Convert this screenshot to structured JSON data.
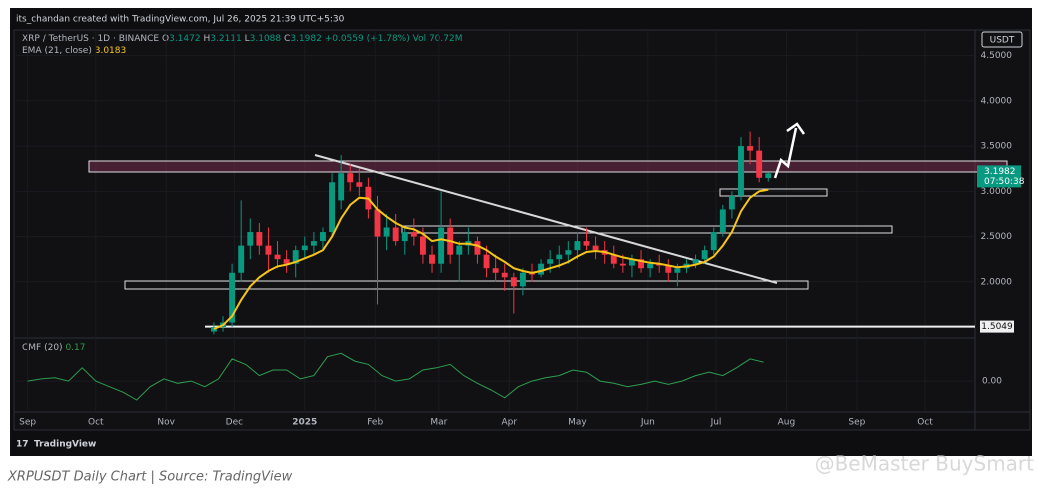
{
  "header": "its_chandan created with TradingView.com, Jul 26, 2025 21:39 UTC+5:30",
  "caption": "XRPUSDT Daily Chart | Source: TradingView",
  "watermark": "@BeMaster BuySmart",
  "logo": "TradingView",
  "chart_data": {
    "type": "candlestick",
    "symbol": "XRP / TetherUS · 1D · BINANCE",
    "ohlc_labels": [
      "O",
      "H",
      "L",
      "C"
    ],
    "change": "+0.0559 (+1.78%)",
    "volume": "Vol 70.72M",
    "currency": "USDT",
    "countdown": "07:50:38",
    "up_color": "#089981",
    "down_color": "#f23645",
    "grid": true,
    "xlim": [
      -6,
      417
    ],
    "xticks": [
      {
        "value": 0,
        "label": "Sep"
      },
      {
        "value": 30,
        "label": "Oct"
      },
      {
        "value": 61,
        "label": "Nov"
      },
      {
        "value": 91,
        "label": "Dec"
      },
      {
        "value": 122,
        "label": "2025"
      },
      {
        "value": 153,
        "label": "Feb"
      },
      {
        "value": 181,
        "label": "Mar"
      },
      {
        "value": 212,
        "label": "Apr"
      },
      {
        "value": 242,
        "label": "May"
      },
      {
        "value": 273,
        "label": "Jun"
      },
      {
        "value": 303,
        "label": "Jul"
      },
      {
        "value": 334,
        "label": "Aug"
      },
      {
        "value": 365,
        "label": "Sep"
      },
      {
        "value": 395,
        "label": "Oct"
      }
    ],
    "ylim": [
      1.39,
      4.75
    ],
    "yticks": [
      {
        "value": 2,
        "label": "2.0000"
      },
      {
        "value": 2.5,
        "label": "2.5000"
      },
      {
        "value": 3,
        "label": "3.0000"
      },
      {
        "value": 3.5,
        "label": "3.5000"
      },
      {
        "value": 4,
        "label": "4.0000"
      },
      {
        "value": 4.5,
        "label": "4.5000"
      }
    ],
    "price_line": 1.5049,
    "x": [
      82,
      86,
      90,
      94,
      98,
      102,
      106,
      110,
      114,
      118,
      122,
      126,
      130,
      134,
      138,
      142,
      146,
      150,
      154,
      158,
      162,
      166,
      170,
      174,
      178,
      182,
      186,
      190,
      194,
      198,
      202,
      206,
      210,
      214,
      218,
      222,
      226,
      230,
      234,
      238,
      242,
      246,
      250,
      254,
      258,
      262,
      266,
      270,
      274,
      278,
      282,
      286,
      290,
      294,
      298,
      302,
      306,
      310,
      314,
      318,
      322,
      326
    ],
    "open": [
      1.45,
      1.5,
      1.55,
      2.1,
      2.4,
      2.55,
      2.4,
      2.3,
      2.25,
      2.2,
      2.35,
      2.4,
      2.45,
      2.55,
      2.9,
      3.2,
      3.1,
      3.05,
      2.8,
      2.5,
      2.6,
      2.45,
      2.55,
      2.5,
      2.3,
      2.2,
      2.6,
      2.3,
      2.4,
      2.45,
      2.3,
      2.15,
      2.1,
      2.05,
      1.95,
      2.1,
      2.08,
      2.2,
      2.25,
      2.3,
      2.35,
      2.45,
      2.4,
      2.35,
      2.3,
      2.2,
      2.18,
      2.25,
      2.15,
      2.2,
      2.18,
      2.1,
      2.15,
      2.2,
      2.25,
      2.35,
      2.55,
      2.8,
      2.95,
      3.5,
      3.45,
      3.1472
    ],
    "high": [
      1.55,
      1.62,
      2.2,
      2.9,
      2.7,
      2.65,
      2.6,
      2.45,
      2.35,
      2.4,
      2.5,
      2.55,
      2.6,
      3.2,
      3.4,
      3.3,
      3.25,
      3.15,
      2.95,
      2.75,
      2.75,
      2.6,
      2.7,
      2.6,
      2.4,
      3.0,
      2.7,
      2.45,
      2.6,
      2.5,
      2.4,
      2.3,
      2.2,
      2.1,
      2.15,
      2.2,
      2.25,
      2.35,
      2.4,
      2.45,
      2.55,
      2.6,
      2.5,
      2.45,
      2.4,
      2.3,
      2.3,
      2.35,
      2.25,
      2.3,
      2.25,
      2.2,
      2.25,
      2.3,
      2.4,
      2.6,
      2.85,
      3.0,
      3.6,
      3.66,
      3.6,
      3.2111
    ],
    "low": [
      1.42,
      1.45,
      1.5,
      2.0,
      2.25,
      2.3,
      2.1,
      2.15,
      2.1,
      2.05,
      2.25,
      2.3,
      2.35,
      2.5,
      2.8,
      3.0,
      2.95,
      2.7,
      1.75,
      2.35,
      2.4,
      2.3,
      2.4,
      2.2,
      2.1,
      2.1,
      2.2,
      2.0,
      2.3,
      2.2,
      2.05,
      2.0,
      1.9,
      1.65,
      1.85,
      2.0,
      2.05,
      2.1,
      2.15,
      2.2,
      2.25,
      2.35,
      2.25,
      2.2,
      2.15,
      2.1,
      2.05,
      2.1,
      2.05,
      2.1,
      2.0,
      1.95,
      2.1,
      2.15,
      2.2,
      2.3,
      2.5,
      2.7,
      2.9,
      3.3,
      3.1,
      3.1088
    ],
    "close": [
      1.5,
      1.55,
      2.1,
      2.4,
      2.55,
      2.4,
      2.3,
      2.25,
      2.2,
      2.35,
      2.4,
      2.45,
      2.55,
      3.1,
      3.2,
      3.1,
      3.05,
      2.8,
      2.5,
      2.6,
      2.45,
      2.55,
      2.5,
      2.3,
      2.2,
      2.6,
      2.3,
      2.4,
      2.45,
      2.3,
      2.15,
      2.1,
      2.05,
      1.95,
      2.1,
      2.08,
      2.2,
      2.25,
      2.3,
      2.35,
      2.45,
      2.4,
      2.35,
      2.3,
      2.2,
      2.18,
      2.25,
      2.15,
      2.2,
      2.18,
      2.1,
      2.15,
      2.2,
      2.25,
      2.35,
      2.55,
      2.8,
      2.95,
      3.5,
      3.45,
      3.15,
      3.1982
    ],
    "ema": {
      "name": "EMA (21, close)",
      "color": "#f5c518",
      "values": [
        1.48,
        1.52,
        1.62,
        1.8,
        1.95,
        2.05,
        2.12,
        2.17,
        2.19,
        2.22,
        2.26,
        2.3,
        2.35,
        2.5,
        2.7,
        2.85,
        2.93,
        2.92,
        2.8,
        2.72,
        2.65,
        2.6,
        2.58,
        2.53,
        2.45,
        2.47,
        2.45,
        2.42,
        2.42,
        2.4,
        2.35,
        2.28,
        2.22,
        2.15,
        2.12,
        2.1,
        2.12,
        2.15,
        2.18,
        2.22,
        2.28,
        2.33,
        2.34,
        2.33,
        2.3,
        2.27,
        2.25,
        2.23,
        2.21,
        2.2,
        2.18,
        2.16,
        2.17,
        2.19,
        2.22,
        2.28,
        2.4,
        2.55,
        2.78,
        2.93,
        3.0,
        3.0183
      ]
    },
    "cmf": {
      "name": "CMF (20)",
      "color": "#2e9e4f",
      "x": [
        0,
        6,
        12,
        18,
        24,
        30,
        36,
        42,
        48,
        54,
        60,
        66,
        72,
        78,
        84,
        90,
        96,
        102,
        108,
        114,
        120,
        126,
        132,
        138,
        144,
        150,
        156,
        162,
        168,
        174,
        180,
        186,
        192,
        198,
        204,
        210,
        216,
        222,
        228,
        234,
        240,
        246,
        252,
        258,
        264,
        270,
        276,
        282,
        288,
        294,
        300,
        306,
        312,
        318,
        324
      ],
      "values": [
        0.0,
        0.02,
        0.03,
        0.0,
        0.12,
        0.0,
        -0.05,
        -0.1,
        -0.17,
        -0.05,
        0.02,
        -0.02,
        0.0,
        -0.05,
        0.02,
        0.2,
        0.15,
        0.05,
        0.1,
        0.1,
        0.02,
        0.05,
        0.22,
        0.25,
        0.18,
        0.15,
        0.05,
        0.0,
        0.02,
        0.1,
        0.12,
        0.15,
        0.05,
        -0.02,
        -0.08,
        -0.15,
        -0.05,
        0.0,
        0.03,
        0.05,
        0.1,
        0.08,
        0.0,
        -0.02,
        -0.05,
        -0.03,
        0.0,
        -0.03,
        0.0,
        0.05,
        0.08,
        0.05,
        0.12,
        0.2,
        0.17
      ],
      "ylim": [
        -0.35,
        0.37
      ],
      "yticks": [
        {
          "value": 0,
          "label": "0.00"
        }
      ]
    }
  }
}
